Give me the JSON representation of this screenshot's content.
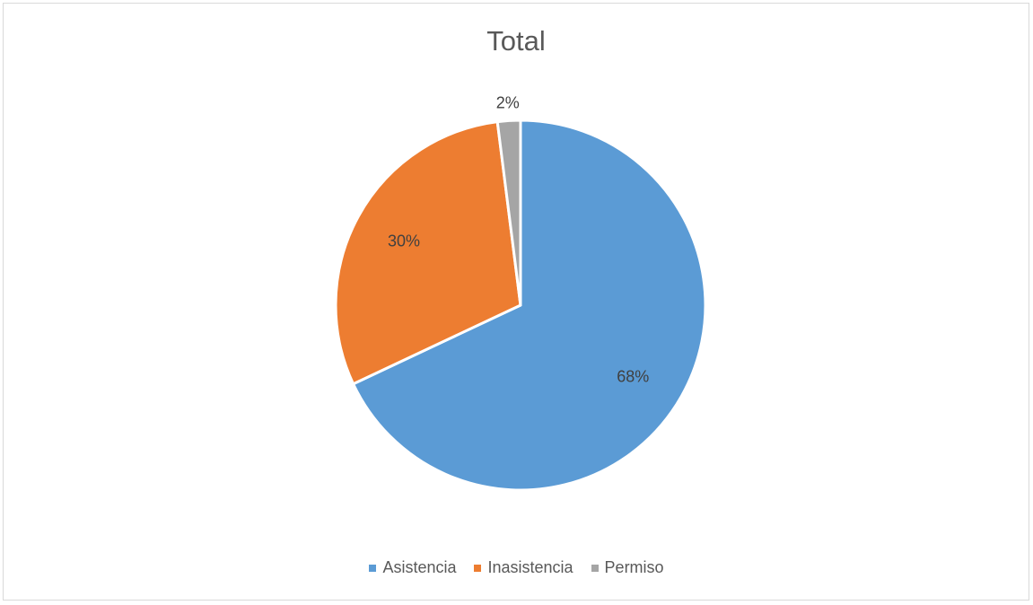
{
  "chart_data": {
    "type": "pie",
    "title": "Total",
    "categories": [
      "Asistencia",
      "Inasistencia",
      "Permiso"
    ],
    "values": [
      68,
      30,
      2
    ],
    "data_labels": [
      "68%",
      "30%",
      "2%"
    ],
    "colors": [
      "#5b9bd5",
      "#ed7d31",
      "#a5a5a5"
    ],
    "legend_position": "bottom",
    "start_angle": "12 o'clock",
    "direction": "clockwise"
  }
}
